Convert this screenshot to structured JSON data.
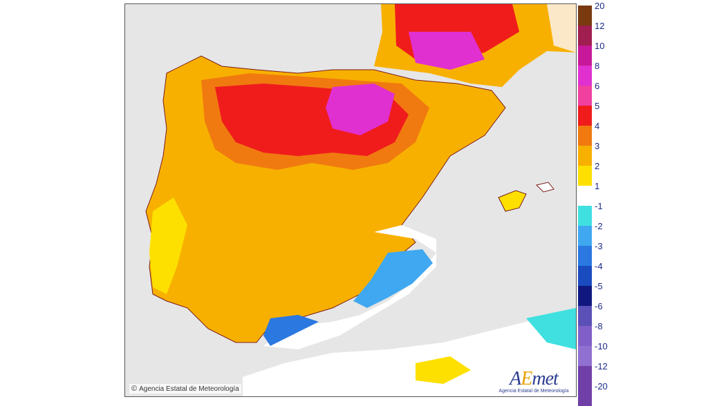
{
  "map": {
    "copyright": "Agencia Estatal de Meteorología",
    "copyright_symbol": "©",
    "logo_text": "AEmet",
    "logo_sub": "Agencia Estatal de Meteorología"
  },
  "legend": {
    "labels": [
      "20",
      "12",
      "10",
      "8",
      "6",
      "5",
      "4",
      "3",
      "2",
      "1",
      "-1",
      "-2",
      "-3",
      "-4",
      "-5",
      "-6",
      "-8",
      "-10",
      "-12",
      "-20"
    ],
    "colors": [
      "#7a3a10",
      "#a01e50",
      "#c8189a",
      "#e030d0",
      "#f040a0",
      "#f01c1c",
      "#f07a10",
      "#f8b000",
      "#fde000",
      "#ffffff",
      "#40e0e0",
      "#40a8f0",
      "#2a78e0",
      "#1a4cc0",
      "#101880",
      "#5a50b8",
      "#8060c8",
      "#9070d0",
      "#7040a8",
      "#000000"
    ]
  }
}
